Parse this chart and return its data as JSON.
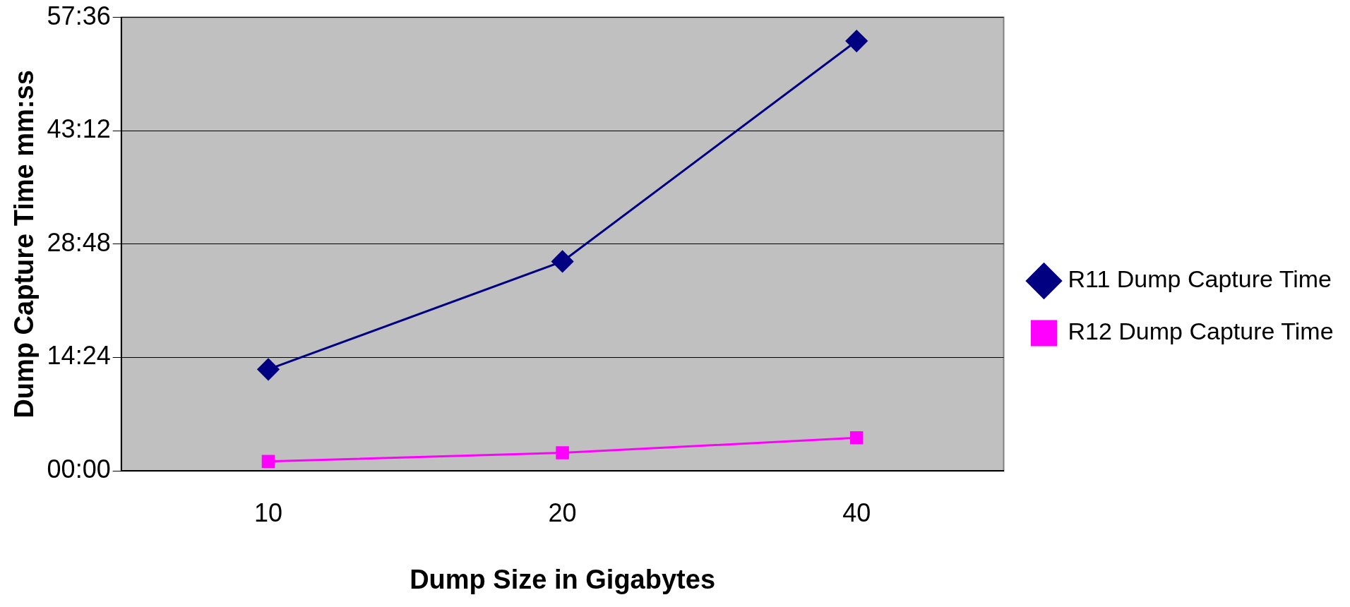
{
  "chart_data": {
    "type": "line",
    "xlabel": "Dump Size in Gigabytes",
    "ylabel": "Dump Capture Time mm:ss",
    "categories": [
      "10",
      "20",
      "40"
    ],
    "series": [
      {
        "name": "R11 Dump Capture Time",
        "color": "#000080",
        "values": [
          12.9,
          26.6,
          54.6
        ],
        "marker": "diamond"
      },
      {
        "name": "R12 Dump Capture Time",
        "color": "#ff00ff",
        "values": [
          1.2,
          2.3,
          4.2
        ],
        "marker": "square"
      }
    ],
    "ylim": [
      0,
      57.6
    ],
    "yticks": [
      {
        "value": 0,
        "label": "00:00"
      },
      {
        "value": 14.4,
        "label": "14:24"
      },
      {
        "value": 28.8,
        "label": "28:48"
      },
      {
        "value": 43.2,
        "label": "43:12"
      },
      {
        "value": 57.6,
        "label": "57:36"
      }
    ],
    "grid": "y",
    "legend": "right",
    "line_style": "solid"
  }
}
